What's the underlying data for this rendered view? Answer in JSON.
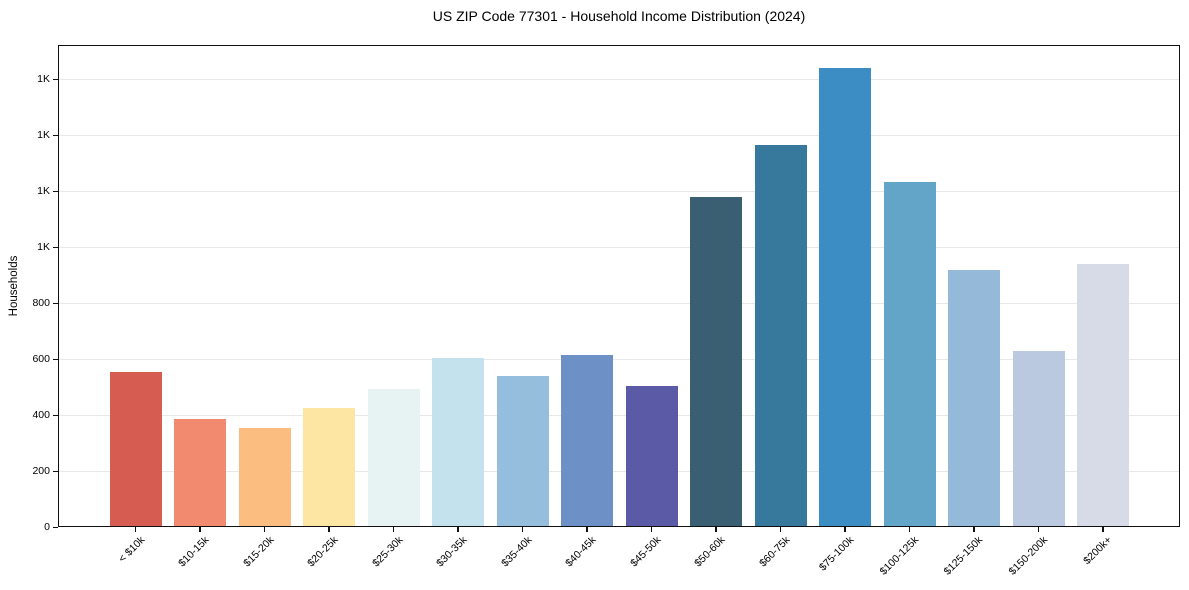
{
  "chart_data": {
    "type": "bar",
    "title": "US ZIP Code 77301 - Household Income Distribution (2024)",
    "xlabel": "",
    "ylabel": "Households",
    "categories": [
      "< $10k",
      "$10-15k",
      "$15-20k",
      "$20-25k",
      "$25-30k",
      "$30-35k",
      "$35-40k",
      "$40-45k",
      "$45-50k",
      "$50-60k",
      "$60-75k",
      "$75-100k",
      "$100-125k",
      "$125-150k",
      "$150-200k",
      "$200k+"
    ],
    "values": [
      555,
      385,
      355,
      425,
      495,
      605,
      540,
      615,
      505,
      1180,
      1365,
      1640,
      1235,
      920,
      630,
      940
    ],
    "bar_colors": [
      "#d65c52",
      "#f18a6e",
      "#fcbd80",
      "#fde5a4",
      "#e7f2f3",
      "#c4e1ee",
      "#94bedb",
      "#6d90c6",
      "#5a5aa6",
      "#3a5f72",
      "#37789d",
      "#3b8dc4",
      "#62a5c9",
      "#95b9d8",
      "#bac9df",
      "#d7dbe7"
    ],
    "y_ticks": [
      {
        "value": 0,
        "label": "0"
      },
      {
        "value": 200,
        "label": "200"
      },
      {
        "value": 400,
        "label": "400"
      },
      {
        "value": 600,
        "label": "600"
      },
      {
        "value": 800,
        "label": "800"
      },
      {
        "value": 1000,
        "label": "1K"
      },
      {
        "value": 1200,
        "label": "1K"
      },
      {
        "value": 1400,
        "label": "1K"
      },
      {
        "value": 1600,
        "label": "1K"
      }
    ],
    "ylim": [
      0,
      1723
    ],
    "grid": "horizontal",
    "legend": "none",
    "frame": "box"
  }
}
